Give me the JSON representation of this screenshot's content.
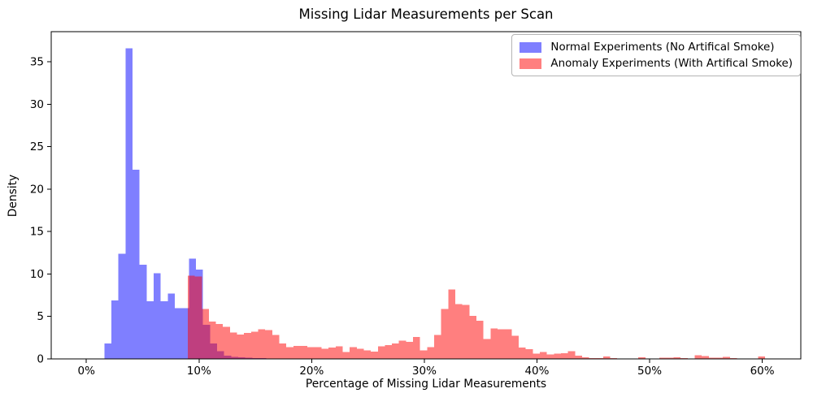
{
  "title": "Missing Lidar Measurements per Scan",
  "xlabel": "Percentage of Missing Lidar Measurements",
  "ylabel": "Density",
  "legend": {
    "items": [
      {
        "label": "Normal Experiments (No Artifical Smoke)",
        "swatch_color": "#7f7fff"
      },
      {
        "label": "Anomaly Experiments (With Artifical Smoke)",
        "swatch_color": "#ff7f7f"
      }
    ]
  },
  "colors": {
    "normal_fill": "#0000ff",
    "anomaly_fill": "#ff0000",
    "fill_alpha": 0.5,
    "normal_blended": "#7f7fff",
    "anomaly_blended": "#ff7f7f",
    "overlap_blended": "#bf3f7f",
    "axis": "#000000",
    "background": "#ffffff"
  },
  "chart_data": {
    "type": "bar",
    "subtype": "overlaid-histogram",
    "title": "Missing Lidar Measurements per Scan",
    "xlabel": "Percentage of Missing Lidar Measurements",
    "ylabel": "Density",
    "grid": false,
    "legend_position": "upper right",
    "x_unit": "percent",
    "bin_width": 0.625,
    "xlim": [
      -3.12,
      63.42
    ],
    "ylim": [
      0,
      38.55
    ],
    "xticks": [
      {
        "value": 0,
        "label": "0%"
      },
      {
        "value": 10,
        "label": "10%"
      },
      {
        "value": 20,
        "label": "20%"
      },
      {
        "value": 30,
        "label": "30%"
      },
      {
        "value": 40,
        "label": "40%"
      },
      {
        "value": 50,
        "label": "50%"
      },
      {
        "value": 60,
        "label": "60%"
      }
    ],
    "yticks": [
      {
        "value": 0,
        "label": "0"
      },
      {
        "value": 5,
        "label": "5"
      },
      {
        "value": 10,
        "label": "10"
      },
      {
        "value": 15,
        "label": "15"
      },
      {
        "value": 20,
        "label": "20"
      },
      {
        "value": 25,
        "label": "25"
      },
      {
        "value": 30,
        "label": "30"
      },
      {
        "value": 35,
        "label": "35"
      }
    ],
    "series": [
      {
        "name": "Normal Experiments (No Artifical Smoke)",
        "color": "#0000ff",
        "alpha": 0.5,
        "bin_start_percent": 1.6,
        "bin_width_percent": 0.625,
        "values": [
          1.8,
          6.9,
          12.4,
          36.6,
          22.3,
          11.1,
          6.8,
          10.1,
          6.8,
          7.7,
          6.0,
          6.0,
          11.8,
          10.5,
          4.0,
          1.8,
          0.9,
          0.4,
          0.25,
          0.2,
          0.15,
          0.1,
          0.1
        ]
      },
      {
        "name": "Anomaly Experiments (With Artifical Smoke)",
        "color": "#ff0000",
        "alpha": 0.5,
        "bin_start_percent": 9.0,
        "bin_width_percent": 0.625,
        "values": [
          9.8,
          9.7,
          5.9,
          4.4,
          4.1,
          3.8,
          3.1,
          2.85,
          3.05,
          3.2,
          3.5,
          3.4,
          2.8,
          1.8,
          1.4,
          1.55,
          1.55,
          1.4,
          1.4,
          1.2,
          1.35,
          1.5,
          0.8,
          1.4,
          1.2,
          1.0,
          0.85,
          1.5,
          1.65,
          1.8,
          2.15,
          2.0,
          2.6,
          1.0,
          1.4,
          2.8,
          5.9,
          8.2,
          6.45,
          6.35,
          5.05,
          4.5,
          2.35,
          3.6,
          3.5,
          3.5,
          2.75,
          1.35,
          1.15,
          0.6,
          0.8,
          0.55,
          0.6,
          0.65,
          0.9,
          0.4,
          0.2,
          0.1,
          0.1,
          0.3,
          0.1,
          0.05,
          0.05,
          0.05,
          0.2,
          0.05,
          0.05,
          0.15,
          0.15,
          0.2,
          0.1,
          0.05,
          0.45,
          0.35,
          0.15,
          0.15,
          0.25,
          0.1,
          0.05,
          0.05,
          0.05,
          0.3
        ]
      }
    ]
  }
}
